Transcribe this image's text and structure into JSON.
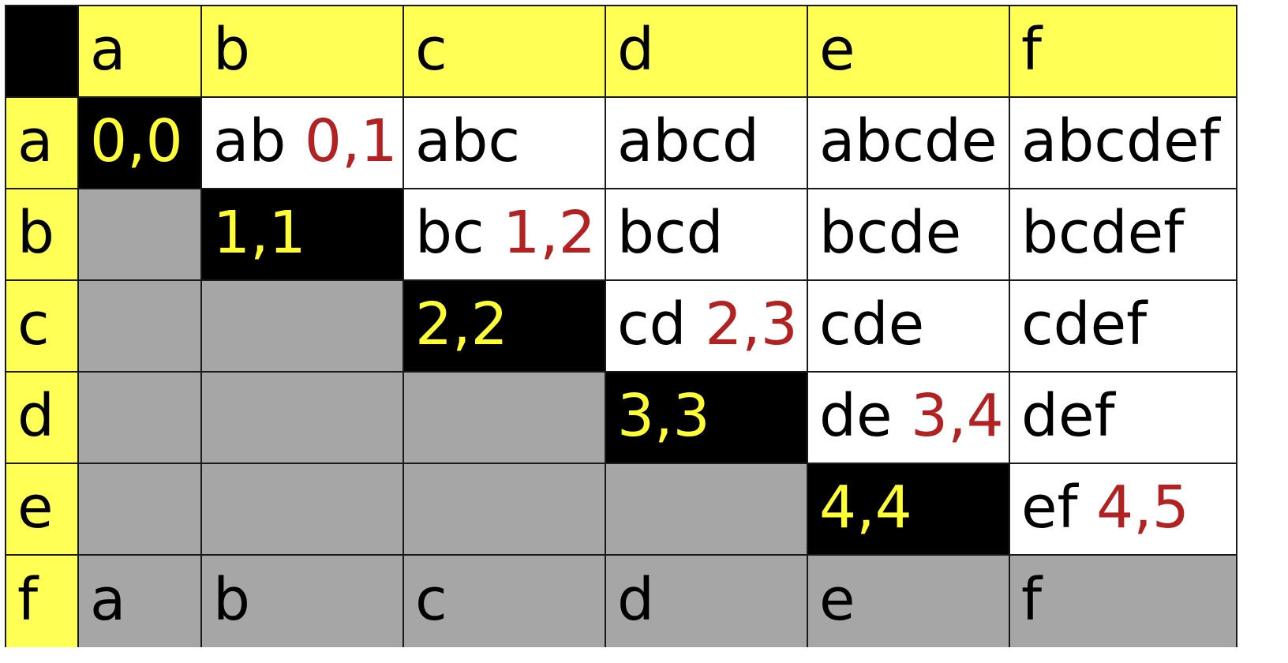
{
  "column_headers": [
    "a",
    "b",
    "c",
    "d",
    "e",
    "f"
  ],
  "rows": [
    {
      "header": "a",
      "cells": [
        {
          "type": "diag",
          "text": "0,0",
          "index": ""
        },
        {
          "type": "white",
          "text": "ab",
          "index": "0,1"
        },
        {
          "type": "white",
          "text": "abc",
          "index": ""
        },
        {
          "type": "white",
          "text": "abcd",
          "index": ""
        },
        {
          "type": "white",
          "text": "abcde",
          "index": ""
        },
        {
          "type": "white",
          "text": "abcdef",
          "index": ""
        }
      ]
    },
    {
      "header": "b",
      "cells": [
        {
          "type": "gray",
          "text": "",
          "index": ""
        },
        {
          "type": "diag",
          "text": "1,1",
          "index": ""
        },
        {
          "type": "white",
          "text": "bc",
          "index": "1,2"
        },
        {
          "type": "white",
          "text": "bcd",
          "index": ""
        },
        {
          "type": "white",
          "text": "bcde",
          "index": ""
        },
        {
          "type": "white",
          "text": "bcdef",
          "index": ""
        }
      ]
    },
    {
      "header": "c",
      "cells": [
        {
          "type": "gray",
          "text": "",
          "index": ""
        },
        {
          "type": "gray",
          "text": "",
          "index": ""
        },
        {
          "type": "diag",
          "text": "2,2",
          "index": ""
        },
        {
          "type": "white",
          "text": "cd",
          "index": "2,3"
        },
        {
          "type": "white",
          "text": "cde",
          "index": ""
        },
        {
          "type": "white",
          "text": "cdef",
          "index": ""
        }
      ]
    },
    {
      "header": "d",
      "cells": [
        {
          "type": "gray",
          "text": "",
          "index": ""
        },
        {
          "type": "gray",
          "text": "",
          "index": ""
        },
        {
          "type": "gray",
          "text": "",
          "index": ""
        },
        {
          "type": "diag",
          "text": "3,3",
          "index": ""
        },
        {
          "type": "white",
          "text": "de",
          "index": "3,4"
        },
        {
          "type": "white",
          "text": "def",
          "index": ""
        }
      ]
    },
    {
      "header": "e",
      "cells": [
        {
          "type": "gray",
          "text": "",
          "index": ""
        },
        {
          "type": "gray",
          "text": "",
          "index": ""
        },
        {
          "type": "gray",
          "text": "",
          "index": ""
        },
        {
          "type": "gray",
          "text": "",
          "index": ""
        },
        {
          "type": "diag",
          "text": "4,4",
          "index": ""
        },
        {
          "type": "white",
          "text": "ef",
          "index": "4,5"
        }
      ]
    },
    {
      "header": "f",
      "cells": [
        {
          "type": "gray",
          "text": "a",
          "index": ""
        },
        {
          "type": "gray",
          "text": "b",
          "index": ""
        },
        {
          "type": "gray",
          "text": "c",
          "index": ""
        },
        {
          "type": "gray",
          "text": "d",
          "index": ""
        },
        {
          "type": "gray",
          "text": "e",
          "index": ""
        },
        {
          "type": "gray",
          "text": "f",
          "index": ""
        }
      ]
    }
  ],
  "colors": {
    "header_fill": "#ffff55",
    "diagonal_fill": "#000000",
    "diagonal_text": "#ffff33",
    "lower_fill": "#a6a6a6",
    "upper_fill": "#ffffff",
    "index_text": "#b22222"
  }
}
